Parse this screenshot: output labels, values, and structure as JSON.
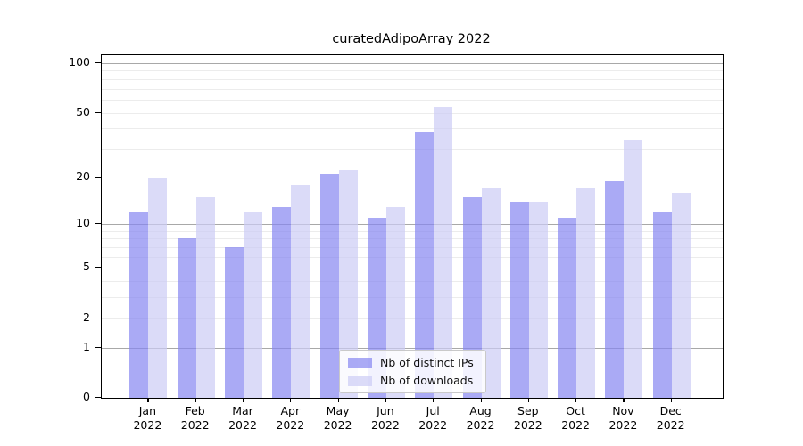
{
  "title": "curatedAdipoArray 2022",
  "chart_data": {
    "type": "bar",
    "title": "curatedAdipoArray 2022",
    "categories": [
      "Jan",
      "Feb",
      "Mar",
      "Apr",
      "May",
      "Jun",
      "Jul",
      "Aug",
      "Sep",
      "Oct",
      "Nov",
      "Dec"
    ],
    "xtick_year": "2022",
    "series": [
      {
        "name": "Nb of distinct IPs",
        "color": "rgba(134,134,241,0.7)",
        "values": [
          12,
          8,
          7,
          13,
          21,
          11,
          38,
          15,
          14,
          11,
          19,
          12
        ]
      },
      {
        "name": "Nb of downloads",
        "color": "rgba(204,204,245,0.7)",
        "values": [
          20,
          15,
          12,
          18,
          22,
          13,
          54,
          17,
          14,
          17,
          34,
          16
        ]
      }
    ],
    "y_ticks": [
      0,
      1,
      2,
      5,
      10,
      20,
      50,
      100
    ],
    "y_scale": "log1p",
    "ylim": [
      0,
      113
    ],
    "xlabel": "",
    "ylabel": "",
    "grid": "on",
    "grid_major_color": "#a8a8a8",
    "grid_minor_color": "#ececec",
    "axis_color": "#000000",
    "legend_position": "lower center"
  }
}
